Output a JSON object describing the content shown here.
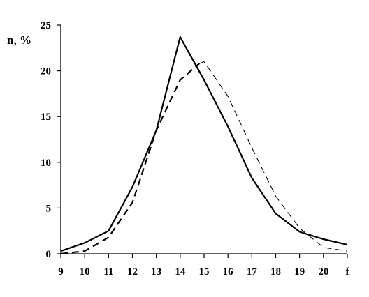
{
  "chart_data": {
    "type": "line",
    "title": "",
    "ylabel": "n, %",
    "xlabel": "",
    "x_ticks": [
      "9",
      "10",
      "11",
      "12",
      "13",
      "14",
      "15",
      "16",
      "17",
      "18",
      "19",
      "20",
      "f"
    ],
    "ylim": [
      0,
      25
    ],
    "y_ticks": [
      0,
      5,
      10,
      15,
      20,
      25
    ],
    "grid": false,
    "legend": "none",
    "series": [
      {
        "style": "solid",
        "x": [
          9,
          10,
          11,
          12,
          13,
          14,
          15,
          16,
          17,
          18,
          19,
          20,
          21
        ],
        "values": [
          0.3,
          1.2,
          2.5,
          7.3,
          13.5,
          23.7,
          19.0,
          13.9,
          8.3,
          4.4,
          2.4,
          1.6,
          1.0
        ]
      },
      {
        "style": "dashed-thick",
        "x": [
          9,
          10,
          11,
          12,
          13,
          14,
          14.8
        ],
        "values": [
          0.0,
          0.3,
          1.8,
          5.6,
          13.5,
          19.0,
          20.8
        ]
      },
      {
        "style": "dashed-thin",
        "x": [
          14.8,
          15,
          16,
          17,
          18,
          19,
          20,
          21
        ],
        "values": [
          20.8,
          21.0,
          17.2,
          11.6,
          6.3,
          2.8,
          0.7,
          0.3
        ]
      }
    ]
  }
}
